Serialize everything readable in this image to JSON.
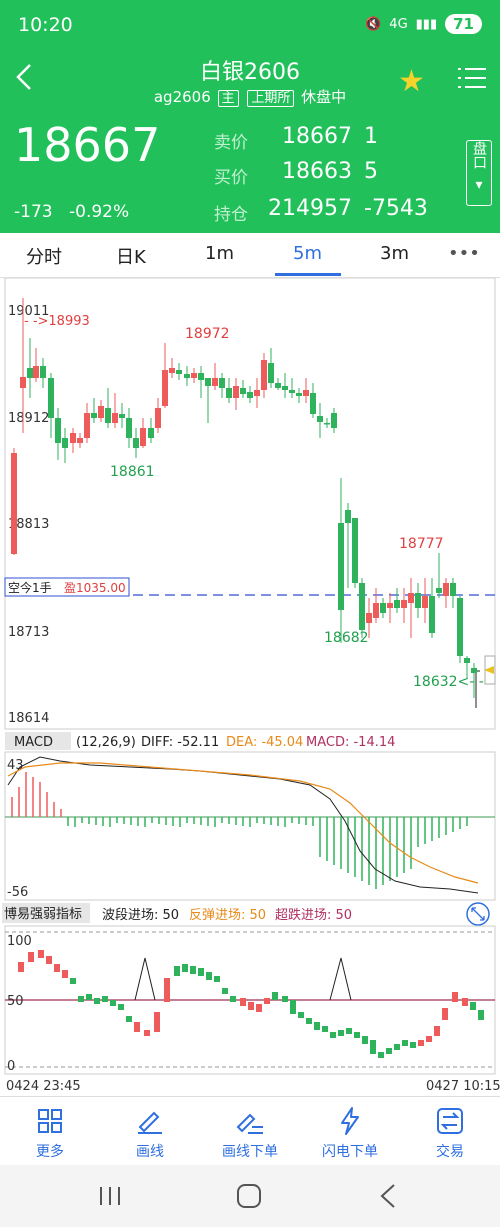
{
  "status_bar": {
    "time": "10:20",
    "network": "4G",
    "battery": "71"
  },
  "header": {
    "title": "白银2606",
    "code": "ag2606",
    "main_tag": "主",
    "exchange_tag": "上期所",
    "status": "休盘中"
  },
  "quote": {
    "last_price": "18667",
    "change": "-173",
    "change_pct": "-0.92%",
    "ask_label": "卖价",
    "ask_price": "18667",
    "ask_vol": "1",
    "bid_label": "买价",
    "bid_price": "18663",
    "bid_vol": "5",
    "oi_label": "持仓",
    "oi": "214957",
    "oi_chg": "-7543",
    "pankou": "盘口"
  },
  "tabs": [
    {
      "label": "分时"
    },
    {
      "label": "日K"
    },
    {
      "label": "1m"
    },
    {
      "label": "5m"
    },
    {
      "label": "3m"
    },
    {
      "label": "•••"
    }
  ],
  "active_tab": "5m",
  "main_chart": {
    "y_ticks": [
      "19011",
      "18912",
      "18813",
      "18713",
      "18614"
    ],
    "annotations": {
      "high_mark": "- ->18993",
      "hi1": "18972",
      "lo1": "18861",
      "hi2": "18777",
      "lo2": "18682",
      "last": "18632<- -"
    },
    "position": {
      "label": "空今1手",
      "pnl": "盈1035.00"
    }
  },
  "macd": {
    "name": "MACD",
    "params": "(12,26,9)",
    "diff": "DIFF: -52.11",
    "dea": "DEA: -45.04",
    "macd": "MACD: -14.14",
    "y_top": "43",
    "y_bottom": "-56"
  },
  "indicator": {
    "name": "博易强弱指标",
    "s1": "波段进场: 50",
    "s2": "反弹进场: 50",
    "s3": "超跌进场: 50",
    "y_ticks": [
      "100",
      "50",
      "0"
    ]
  },
  "time_axis": {
    "start": "0424 23:45",
    "end": "0427 10:15"
  },
  "bottom_nav": [
    {
      "label": "更多"
    },
    {
      "label": "画线"
    },
    {
      "label": "画线下单"
    },
    {
      "label": "闪电下单"
    },
    {
      "label": "交易"
    }
  ],
  "colors": {
    "up": "#ee5b5b",
    "down": "#2fb25c",
    "header": "#22c05a",
    "accent": "#2f6fe0",
    "dea": "#e88a1a"
  }
}
